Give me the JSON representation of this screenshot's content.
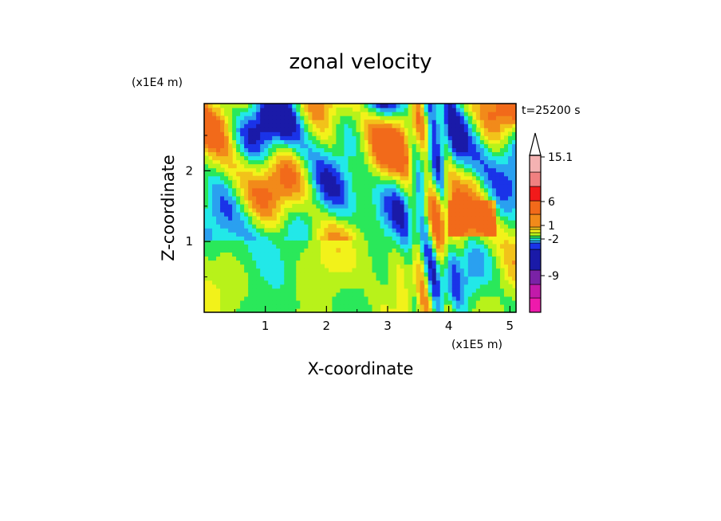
{
  "chart_data": {
    "type": "heatmap",
    "title": "zonal velocity",
    "xlabel": "X-coordinate",
    "ylabel": "Z-coordinate",
    "x_unit": "(x1E5 m)",
    "y_unit": "(x1E4 m)",
    "time_label": "t=25200 s",
    "xlim": [
      0,
      5.1
    ],
    "ylim": [
      0,
      2.95
    ],
    "x_ticks": [
      1,
      2,
      3,
      4,
      5
    ],
    "y_ticks": [
      1,
      2
    ],
    "colorbar": {
      "labeled_levels": [
        "15.1",
        "6",
        "1",
        "-2",
        "-9"
      ],
      "level_values": [
        15.1,
        6,
        1,
        -2,
        -9
      ],
      "extend": "max",
      "colors": [
        "#ee1aac",
        "#c21aaa",
        "#7a22a6",
        "#1a1aa8",
        "#1a33e8",
        "#2aa0f0",
        "#22e8e8",
        "#2ae85a",
        "#b8f21a",
        "#f2f21a",
        "#f2c21a",
        "#f28a1a",
        "#f26a1a",
        "#f21a1a",
        "#f08080",
        "#f4b2b2"
      ],
      "extension_color": "#ffffff"
    }
  }
}
